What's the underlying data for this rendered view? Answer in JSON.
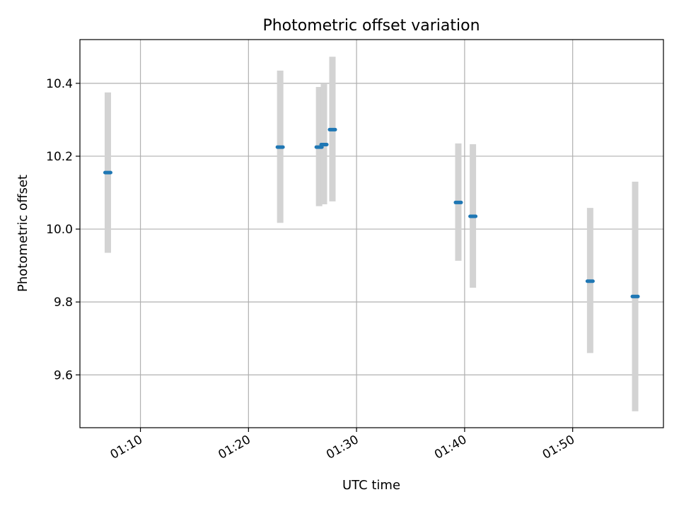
{
  "chart_data": {
    "type": "scatter",
    "title": "Photometric offset variation",
    "xlabel": "UTC time",
    "ylabel": "Photometric offset",
    "x_unit": "UTC clock time (hh:mm)",
    "xlim": [
      "01:04:24",
      "01:58:24"
    ],
    "ylim": [
      9.455,
      10.52
    ],
    "grid": true,
    "xticks": [
      "01:10",
      "01:20",
      "01:30",
      "01:40",
      "01:50"
    ],
    "yticks": [
      9.6,
      9.8,
      10.0,
      10.2,
      10.4
    ],
    "colors": {
      "point": "#1f77b4",
      "errorbar": "#d3d3d3",
      "grid": "#b0b0b0",
      "axes": "#000000"
    },
    "points": [
      {
        "x": "01:06:59",
        "y": 10.155,
        "err_low": 9.935,
        "err_high": 10.375
      },
      {
        "x": "01:22:56",
        "y": 10.225,
        "err_low": 10.017,
        "err_high": 10.435
      },
      {
        "x": "01:26:32",
        "y": 10.225,
        "err_low": 10.063,
        "err_high": 10.39
      },
      {
        "x": "01:26:59",
        "y": 10.232,
        "err_low": 10.068,
        "err_high": 10.398
      },
      {
        "x": "01:27:46",
        "y": 10.273,
        "err_low": 10.076,
        "err_high": 10.473
      },
      {
        "x": "01:39:25",
        "y": 10.073,
        "err_low": 9.913,
        "err_high": 10.235
      },
      {
        "x": "01:40:46",
        "y": 10.035,
        "err_low": 9.839,
        "err_high": 10.233
      },
      {
        "x": "01:51:37",
        "y": 9.857,
        "err_low": 9.66,
        "err_high": 10.058
      },
      {
        "x": "01:55:47",
        "y": 9.815,
        "err_low": 9.5,
        "err_high": 10.13
      }
    ]
  }
}
